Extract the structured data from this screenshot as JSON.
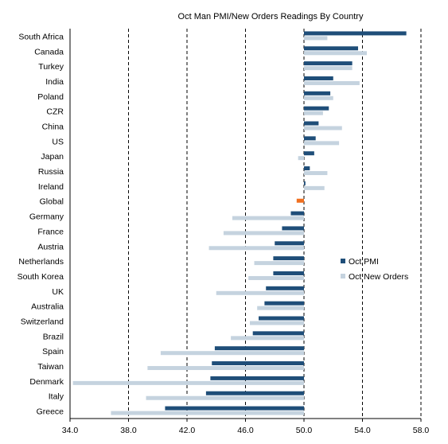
{
  "chart_data": {
    "type": "bar",
    "orientation": "horizontal",
    "title": "Oct Man PMI/New Orders Readings By Country",
    "categories": [
      "South Africa",
      "Canada",
      "Turkey",
      "India",
      "Poland",
      "CZR",
      "China",
      "US",
      "Japan",
      "Russia",
      "Ireland",
      "Global",
      "Germany",
      "France",
      "Austria",
      "Netherlands",
      "South Korea",
      "UK",
      "Australia",
      "Switzerland",
      "Brazil",
      "Spain",
      "Taiwan",
      "Denmark",
      "Italy",
      "Greece"
    ],
    "series": [
      {
        "name": "Oct PMI",
        "color": "#1f4e79",
        "values": [
          57.0,
          53.7,
          53.3,
          52.0,
          51.8,
          51.7,
          51.0,
          50.8,
          50.7,
          50.4,
          50.1,
          null,
          49.1,
          48.5,
          48.0,
          47.9,
          47.9,
          47.4,
          47.3,
          46.9,
          46.5,
          43.9,
          43.7,
          43.6,
          43.3,
          40.5
        ]
      },
      {
        "name": "Oct New Orders",
        "color": "#c5d3df",
        "values": [
          51.6,
          54.3,
          53.3,
          53.8,
          52.0,
          51.3,
          52.6,
          52.4,
          49.6,
          51.6,
          51.4,
          null,
          45.1,
          44.5,
          43.5,
          46.6,
          46.2,
          44.0,
          46.8,
          46.3,
          45.0,
          40.2,
          39.3,
          34.2,
          39.2,
          36.8
        ]
      },
      {
        "name": "Global",
        "color": "#f07020",
        "values": [
          null,
          null,
          null,
          null,
          null,
          null,
          null,
          null,
          null,
          null,
          null,
          49.5,
          null,
          null,
          null,
          null,
          null,
          null,
          null,
          null,
          null,
          null,
          null,
          null,
          null,
          null
        ]
      }
    ],
    "xlim": [
      34.0,
      58.0
    ],
    "xticks": [
      "34.0",
      "38.0",
      "42.0",
      "46.0",
      "50.0",
      "54.0",
      "58.0"
    ],
    "baseline": 50.0,
    "gridlines": "vertical dashed",
    "legend": {
      "position": "right",
      "entries": [
        "Oct PMI",
        "Oct New Orders"
      ]
    }
  }
}
